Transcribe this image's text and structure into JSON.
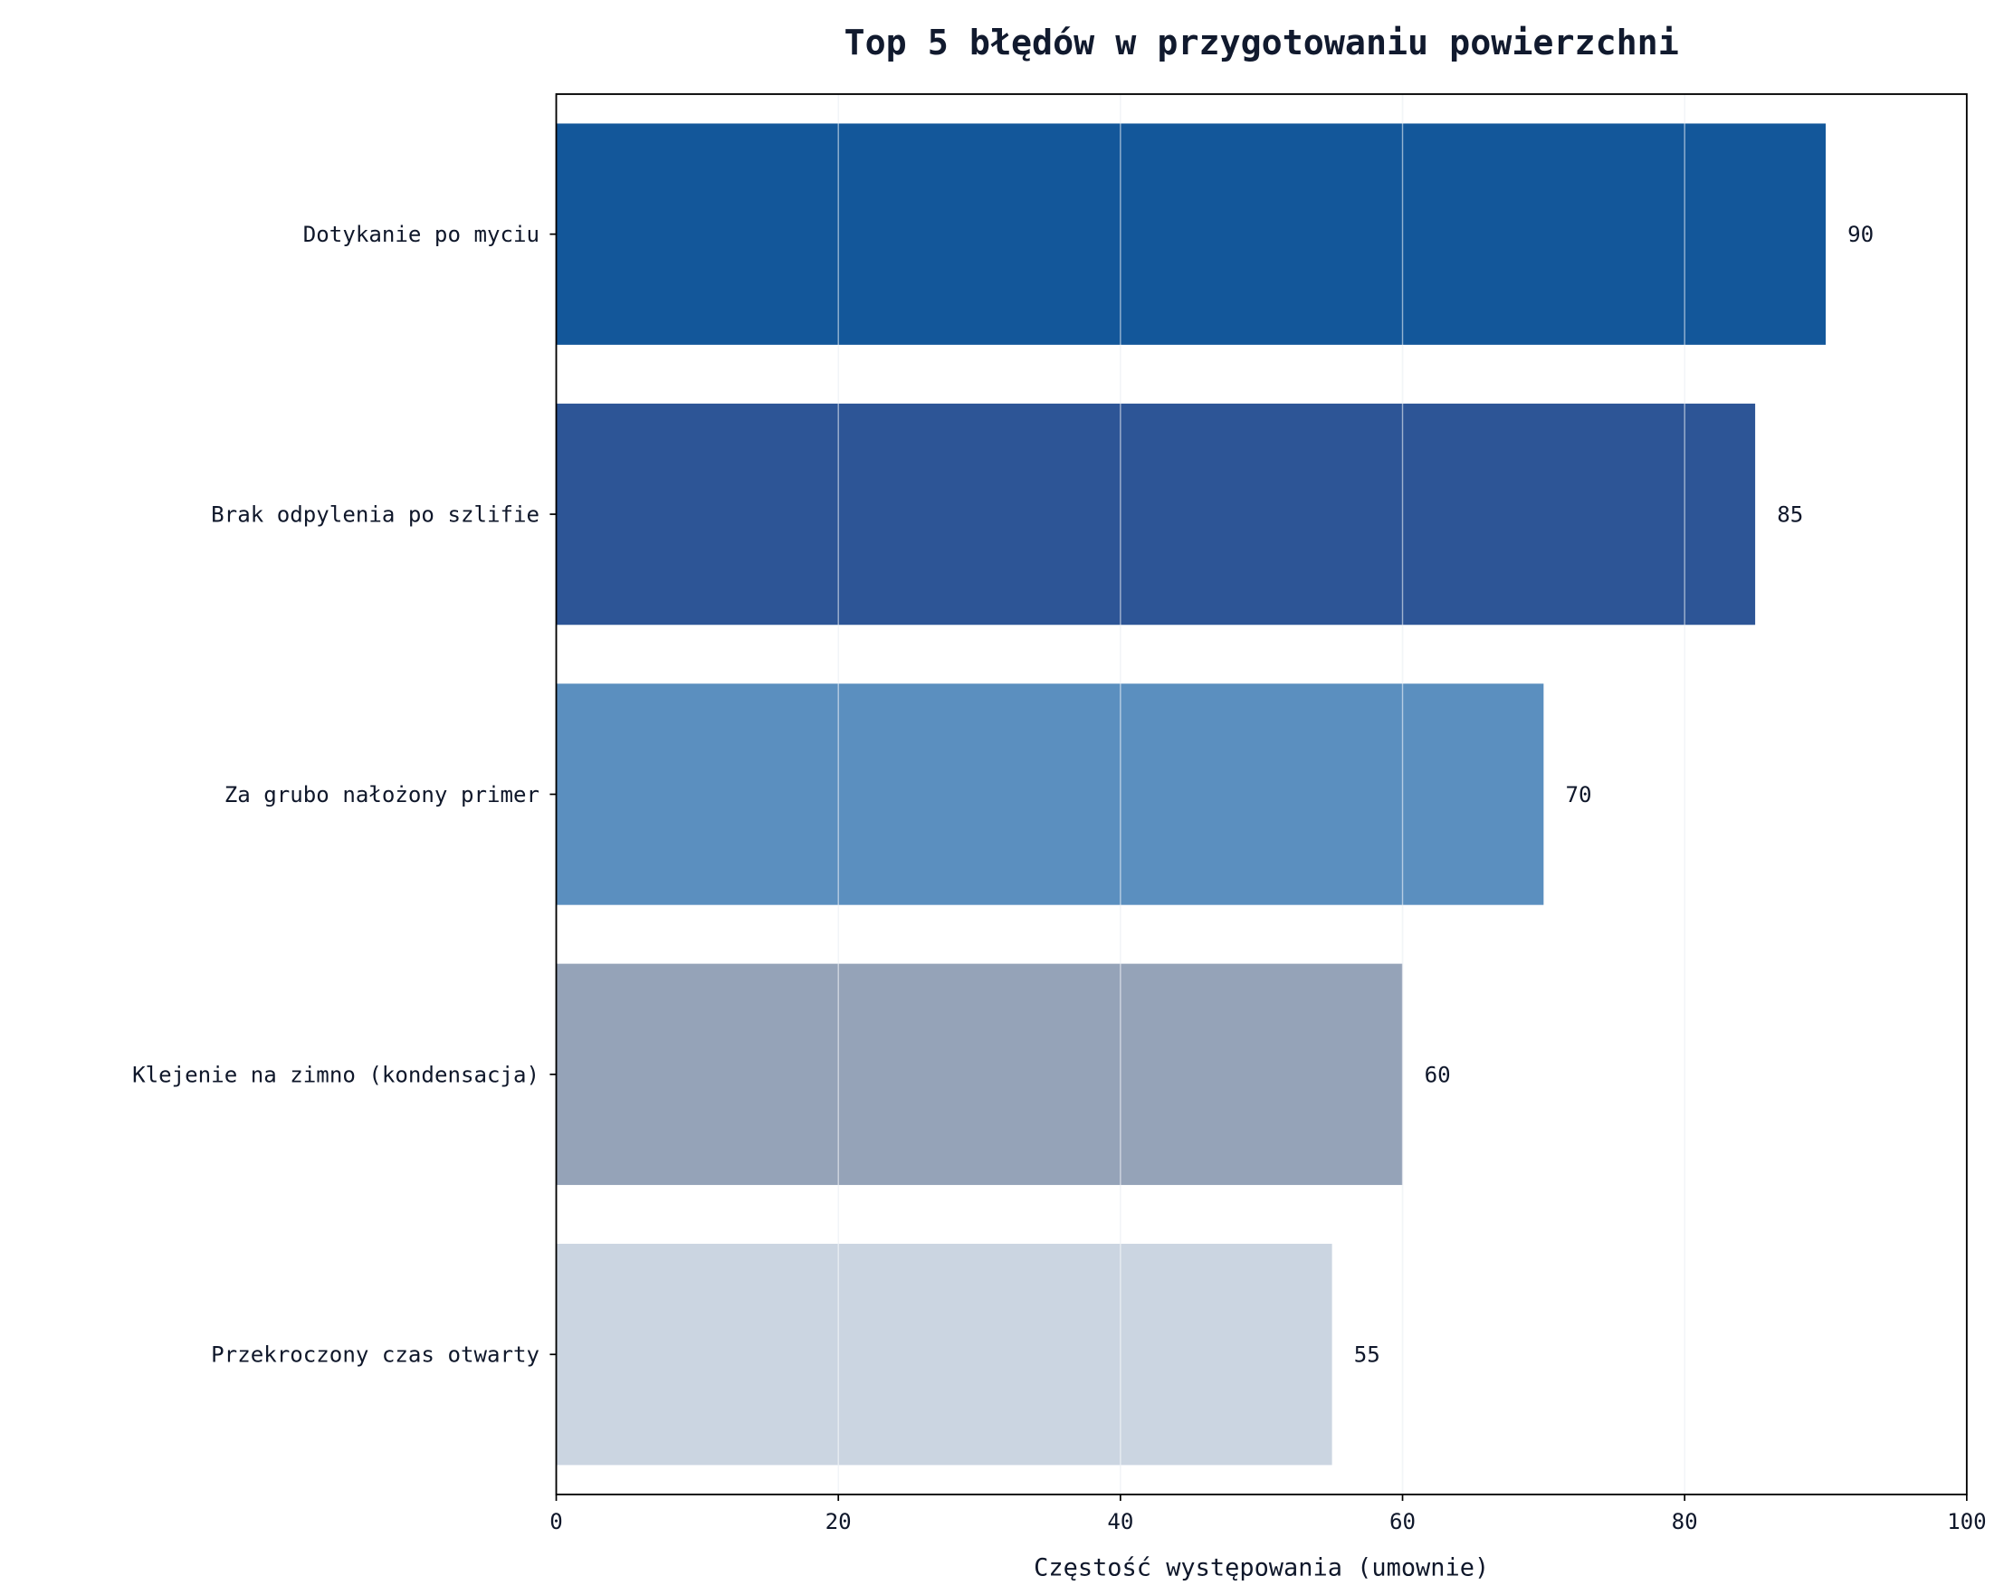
{
  "chart_data": {
    "type": "bar",
    "orientation": "horizontal",
    "title": "Top 5 błędów w przygotowaniu powierzchni",
    "xlabel": "Częstość występowania (umownie)",
    "ylabel": "",
    "categories": [
      "Dotykanie po myciu",
      "Brak odpylenia po szlifie",
      "Za grubo nałożony primer",
      "Klejenie na zimno (kondensacja)",
      "Przekroczony czas otwarty"
    ],
    "values": [
      90,
      85,
      70,
      60,
      55
    ],
    "data_labels": [
      "90",
      "85",
      "70",
      "60",
      "55"
    ],
    "colors": [
      "#13579a",
      "#2d5596",
      "#5b8fbf",
      "#95a3b8",
      "#cbd5e1"
    ],
    "xlim": [
      0,
      100
    ],
    "xticks": [
      0,
      20,
      40,
      60,
      80,
      100
    ],
    "xtick_labels": [
      "0",
      "20",
      "40",
      "60",
      "80",
      "100"
    ],
    "grid": "vertical",
    "grid_color": "#e2e8f0"
  }
}
